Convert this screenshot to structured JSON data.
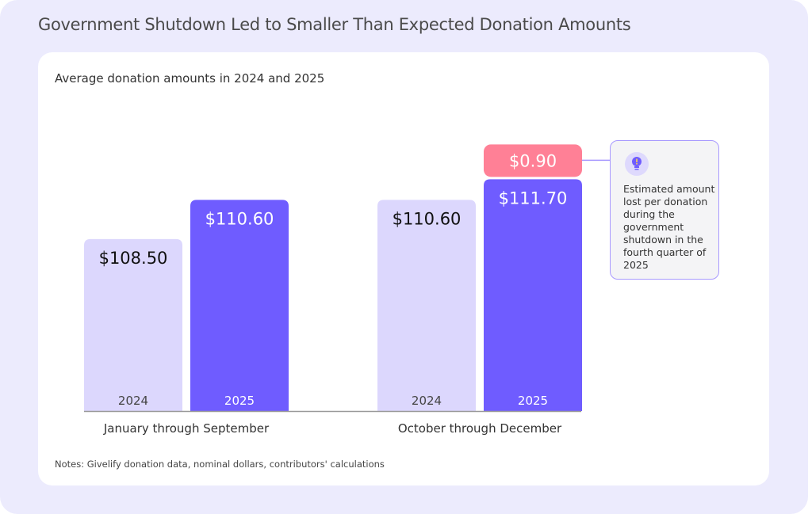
{
  "title": "Government Shutdown Led to Smaller Than Expected Donation Amounts",
  "subtitle": "Average donation amounts in 2024 and 2025",
  "notes": "Notes: Givelify donation data, nominal dollars, contributors' calculations",
  "callout": {
    "icon": "lightbulb-exclamation-icon",
    "text": "Estimated amount lost per donation during the government shutdown in the fourth quarter of 2025"
  },
  "colors": {
    "bar_2024": "#dcd7fd",
    "bar_2025": "#6f5cff",
    "loss": "#ff8096",
    "background": "#ecebfd"
  },
  "chart_data": {
    "type": "bar",
    "categories": [
      "January through September",
      "October through December"
    ],
    "series": [
      {
        "name": "2024",
        "values": [
          108.5,
          110.6
        ],
        "labels": [
          "$108.50",
          "$110.60"
        ]
      },
      {
        "name": "2025",
        "values": [
          110.6,
          111.7
        ],
        "labels": [
          "$110.60",
          "$111.70"
        ]
      }
    ],
    "stacked_extra": {
      "category": "October through December",
      "series": "2025",
      "value": 0.9,
      "label": "$0.90"
    },
    "title": "Average donation amounts in 2024 and 2025",
    "xlabel": "",
    "ylabel": "",
    "grid": false,
    "legend": "none"
  }
}
